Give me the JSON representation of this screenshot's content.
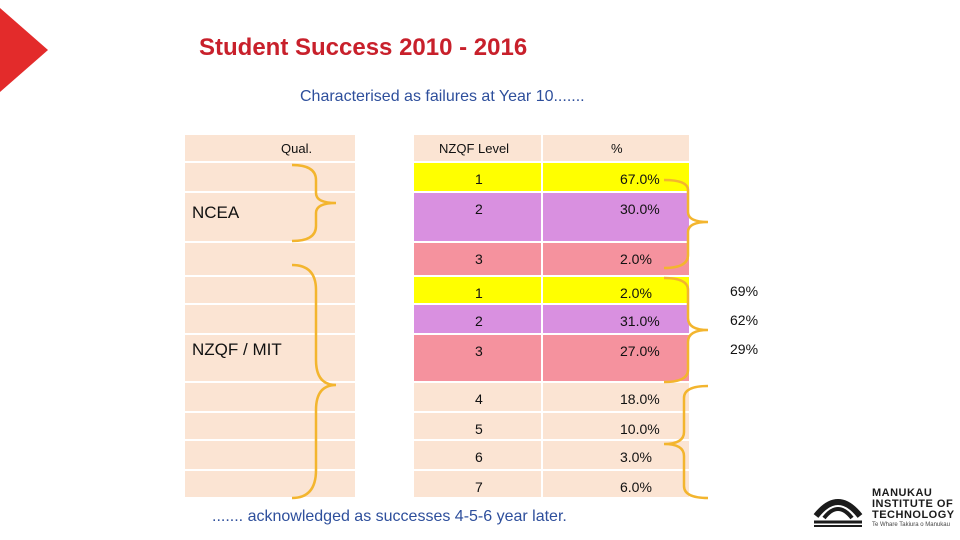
{
  "title": "Student Success 2010 - 2016",
  "subtitle": "Characterised as failures at Year 10.......",
  "footer": "....... acknowledged as successes 4-5-6 year later.",
  "colors": {
    "title": "#c8202b",
    "subtitle": "#2e4f9c",
    "header_bg": "#fbe4d3",
    "level1": "#ffff00",
    "level2": "#d990e0",
    "level3": "#f5929e",
    "plain": "#fbe4d3",
    "brace": "#f3b52e",
    "arrow": "#e32b2b"
  },
  "table": {
    "headers": {
      "qual": "Qual.",
      "level": "NZQF Level",
      "pct": "%"
    },
    "groups": [
      {
        "label": "NCEA"
      },
      {
        "label": "NZQF / MIT"
      }
    ],
    "rows": [
      {
        "level": "1",
        "pct": "67.0%",
        "color": "level1"
      },
      {
        "level": "2",
        "pct": "30.0%",
        "color": "level2"
      },
      {
        "level": "3",
        "pct": "2.0%",
        "color": "level3"
      },
      {
        "level": "1",
        "pct": "2.0%",
        "color": "level1"
      },
      {
        "level": "2",
        "pct": "31.0%",
        "color": "level2"
      },
      {
        "level": "3",
        "pct": "27.0%",
        "color": "level3"
      },
      {
        "level": "4",
        "pct": "18.0%",
        "color": "plain"
      },
      {
        "level": "5",
        "pct": "10.0%",
        "color": "plain"
      },
      {
        "level": "6",
        "pct": "3.0%",
        "color": "plain"
      },
      {
        "level": "7",
        "pct": "6.0%",
        "color": "plain"
      }
    ]
  },
  "side_values": [
    "69%",
    "62%",
    "29%"
  ],
  "logo": {
    "line1": "MANUKAU",
    "line2": "INSTITUTE OF",
    "line3": "TECHNOLOGY",
    "tagline": "Te Whare Takiura o Manukau"
  }
}
